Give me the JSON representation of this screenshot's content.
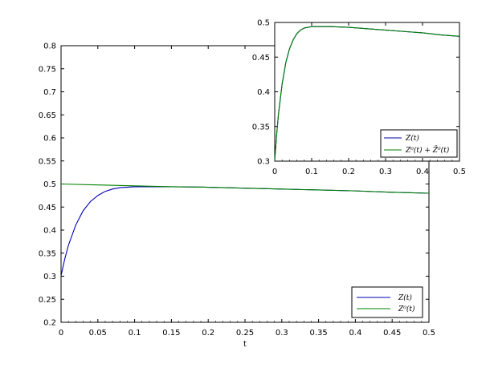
{
  "chart_data": [
    {
      "type": "line",
      "role": "main",
      "xlabel": "t",
      "ylabel": "",
      "xlim": [
        0,
        0.5
      ],
      "ylim": [
        0.2,
        0.8
      ],
      "x_ticks": [
        "0",
        "0.05",
        "0.1",
        "0.15",
        "0.2",
        "0.25",
        "0.3",
        "0.35",
        "0.4",
        "0.45",
        "0.5"
      ],
      "y_ticks": [
        "0.2",
        "0.25",
        "0.3",
        "0.35",
        "0.4",
        "0.45",
        "0.5",
        "0.55",
        "0.6",
        "0.65",
        "0.7",
        "0.75",
        "0.8"
      ],
      "legend_position": "bottom-right",
      "series": [
        {
          "name": "Z(t)",
          "color": "#0000b4",
          "x": [
            0,
            0.005,
            0.01,
            0.02,
            0.03,
            0.04,
            0.05,
            0.06,
            0.07,
            0.08,
            0.1,
            0.12,
            0.15,
            0.2,
            0.25,
            0.3,
            0.35,
            0.4,
            0.45,
            0.5
          ],
          "y": [
            0.301,
            0.337,
            0.367,
            0.411,
            0.442,
            0.462,
            0.475,
            0.484,
            0.489,
            0.492,
            0.494,
            0.494,
            0.494,
            0.493,
            0.491,
            0.489,
            0.487,
            0.485,
            0.482,
            0.48
          ]
        },
        {
          "name": "Z⁰(t)",
          "color": "#008000",
          "x": [
            0,
            0.05,
            0.1,
            0.15,
            0.2,
            0.25,
            0.3,
            0.35,
            0.4,
            0.45,
            0.5
          ],
          "y": [
            0.5,
            0.498,
            0.496,
            0.494,
            0.493,
            0.491,
            0.489,
            0.487,
            0.485,
            0.482,
            0.48
          ]
        }
      ]
    },
    {
      "type": "line",
      "role": "inset",
      "xlabel": "",
      "ylabel": "",
      "xlim": [
        0,
        0.5
      ],
      "ylim": [
        0.3,
        0.5
      ],
      "x_ticks": [
        "0",
        "0.1",
        "0.2",
        "0.3",
        "0.4",
        "0.5"
      ],
      "y_ticks": [
        "0.3",
        "0.35",
        "0.4",
        "0.45",
        "0.5"
      ],
      "legend_position": "bottom-right",
      "series": [
        {
          "name": "Z(t)",
          "color": "#0000b4",
          "x": [
            0,
            0.005,
            0.01,
            0.02,
            0.03,
            0.04,
            0.05,
            0.06,
            0.07,
            0.08,
            0.1,
            0.12,
            0.15,
            0.2,
            0.25,
            0.3,
            0.35,
            0.4,
            0.45,
            0.5
          ],
          "y": [
            0.301,
            0.337,
            0.367,
            0.411,
            0.442,
            0.462,
            0.475,
            0.484,
            0.489,
            0.492,
            0.494,
            0.494,
            0.494,
            0.493,
            0.491,
            0.489,
            0.487,
            0.485,
            0.482,
            0.48
          ]
        },
        {
          "name": "Z⁰(t) + Z̄⁰(t)",
          "color": "#008000",
          "x": [
            0,
            0.005,
            0.01,
            0.02,
            0.03,
            0.04,
            0.05,
            0.06,
            0.07,
            0.08,
            0.1,
            0.12,
            0.15,
            0.2,
            0.25,
            0.3,
            0.35,
            0.4,
            0.45,
            0.5
          ],
          "y": [
            0.301,
            0.337,
            0.367,
            0.411,
            0.442,
            0.462,
            0.475,
            0.484,
            0.489,
            0.492,
            0.494,
            0.494,
            0.494,
            0.493,
            0.491,
            0.489,
            0.487,
            0.485,
            0.482,
            0.48
          ]
        }
      ]
    }
  ]
}
